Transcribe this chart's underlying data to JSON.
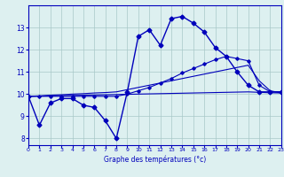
{
  "xlabel": "Graphe des températures (°c)",
  "background_color": "#ddf0f0",
  "line_color": "#0000bb",
  "hours": [
    0,
    1,
    2,
    3,
    4,
    5,
    6,
    7,
    8,
    9,
    10,
    11,
    12,
    13,
    14,
    15,
    16,
    17,
    18,
    19,
    20,
    21,
    22,
    23
  ],
  "temp_main": [
    9.9,
    8.6,
    9.6,
    9.8,
    9.8,
    9.5,
    9.4,
    8.8,
    8.0,
    10.1,
    12.6,
    12.9,
    12.2,
    13.4,
    13.5,
    13.2,
    12.8,
    12.1,
    11.7,
    11.0,
    10.4,
    10.1,
    10.1,
    10.1
  ],
  "temp_trend1": [
    9.9,
    9.9,
    9.9,
    9.9,
    9.9,
    9.9,
    9.9,
    9.9,
    9.9,
    10.0,
    10.15,
    10.3,
    10.5,
    10.7,
    10.95,
    11.15,
    11.35,
    11.55,
    11.7,
    11.6,
    11.5,
    10.4,
    10.1,
    10.1
  ],
  "temp_trend2": [
    9.9,
    9.92,
    9.95,
    9.97,
    10.0,
    10.02,
    10.05,
    10.07,
    10.1,
    10.2,
    10.3,
    10.4,
    10.5,
    10.6,
    10.7,
    10.8,
    10.9,
    11.0,
    11.1,
    11.2,
    11.3,
    10.6,
    10.15,
    10.05
  ],
  "temp_trend3": [
    9.9,
    9.91,
    9.92,
    9.93,
    9.94,
    9.95,
    9.96,
    9.97,
    9.98,
    9.99,
    10.0,
    10.01,
    10.02,
    10.03,
    10.04,
    10.05,
    10.06,
    10.07,
    10.08,
    10.09,
    10.1,
    10.08,
    10.06,
    10.05
  ],
  "ylim": [
    7.7,
    14.0
  ],
  "yticks": [
    8,
    9,
    10,
    11,
    12,
    13
  ],
  "xlim": [
    0,
    23
  ],
  "xticks": [
    0,
    1,
    2,
    3,
    4,
    5,
    6,
    7,
    8,
    9,
    10,
    11,
    12,
    13,
    14,
    15,
    16,
    17,
    18,
    19,
    20,
    21,
    22,
    23
  ]
}
